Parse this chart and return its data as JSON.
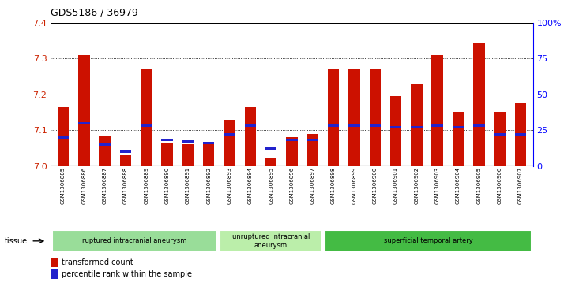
{
  "title": "GDS5186 / 36979",
  "samples": [
    "GSM1306885",
    "GSM1306886",
    "GSM1306887",
    "GSM1306888",
    "GSM1306889",
    "GSM1306890",
    "GSM1306891",
    "GSM1306892",
    "GSM1306893",
    "GSM1306894",
    "GSM1306895",
    "GSM1306896",
    "GSM1306897",
    "GSM1306898",
    "GSM1306899",
    "GSM1306900",
    "GSM1306901",
    "GSM1306902",
    "GSM1306903",
    "GSM1306904",
    "GSM1306905",
    "GSM1306906",
    "GSM1306907"
  ],
  "transformed_count": [
    7.165,
    7.31,
    7.085,
    7.03,
    7.27,
    7.065,
    7.06,
    7.065,
    7.13,
    7.165,
    7.02,
    7.08,
    7.09,
    7.27,
    7.27,
    7.27,
    7.195,
    7.23,
    7.31,
    7.15,
    7.345,
    7.15,
    7.175
  ],
  "percentile_rank": [
    20,
    30,
    15,
    10,
    28,
    18,
    17,
    16,
    22,
    28,
    12,
    18,
    18,
    28,
    28,
    28,
    27,
    27,
    28,
    27,
    28,
    22,
    22
  ],
  "groups": [
    {
      "label": "ruptured intracranial aneurysm",
      "start": 0,
      "end": 8,
      "color": "#99dd99"
    },
    {
      "label": "unruptured intracranial\naneurysm",
      "start": 8,
      "end": 13,
      "color": "#bbeeaa"
    },
    {
      "label": "superficial temporal artery",
      "start": 13,
      "end": 23,
      "color": "#44bb44"
    }
  ],
  "ylim": [
    7.0,
    7.4
  ],
  "yticks": [
    7.0,
    7.1,
    7.2,
    7.3,
    7.4
  ],
  "right_yticks": [
    0,
    25,
    50,
    75,
    100
  ],
  "right_ylabels": [
    "0",
    "25",
    "50",
    "75",
    "100%"
  ],
  "bar_color": "#cc1100",
  "blue_color": "#2222cc",
  "bg_color": "#ffffff",
  "legend_tc": "transformed count",
  "legend_pr": "percentile rank within the sample",
  "tissue_label": "tissue"
}
